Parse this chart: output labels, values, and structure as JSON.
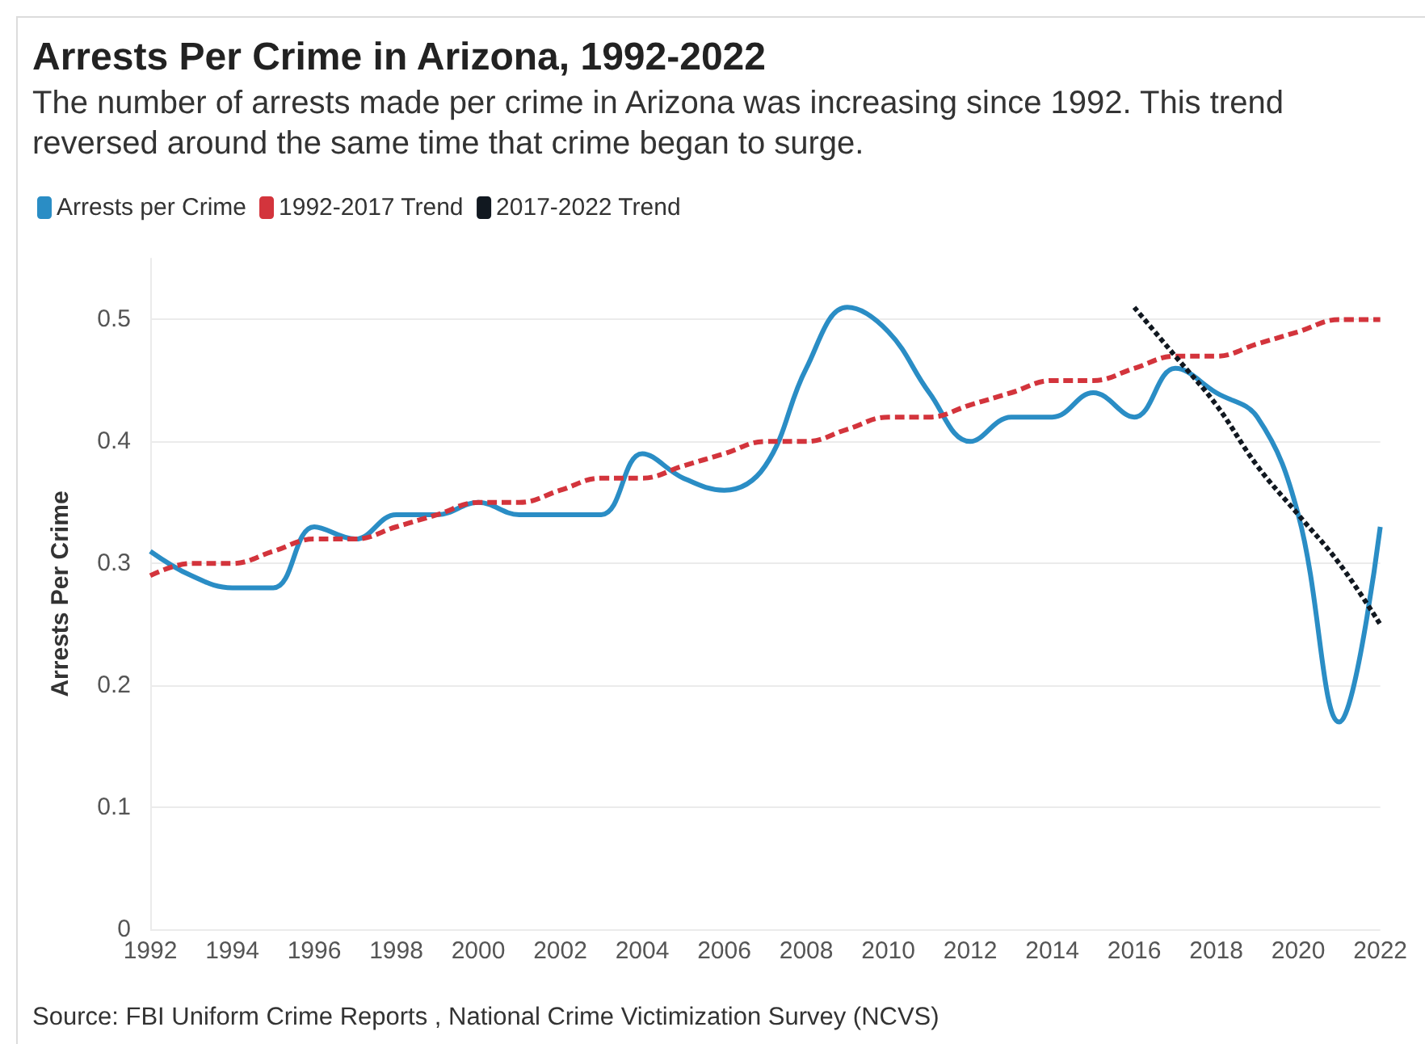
{
  "chart_data": {
    "type": "line",
    "title": "Arrests Per Crime in Arizona, 1992-2022",
    "subtitle": "The number of arrests made per crime in Arizona was increasing since 1992. This trend reversed around the same time that crime began to surge.",
    "ylabel": "Arrests Per Crime",
    "annotations": [
      "Source: FBI Uniform Crime Reports , National Crime Victimization Survey (NCVS)"
    ],
    "x": [
      1992,
      1993,
      1994,
      1995,
      1996,
      1997,
      1998,
      1999,
      2000,
      2001,
      2002,
      2003,
      2004,
      2005,
      2006,
      2007,
      2008,
      2009,
      2010,
      2011,
      2012,
      2013,
      2014,
      2015,
      2016,
      2017,
      2018,
      2019,
      2020,
      2021,
      2022
    ],
    "series": [
      {
        "name": "Arrests per Crime",
        "color": "#2a8dc5",
        "line_style": "solid",
        "values": [
          0.31,
          0.29,
          0.28,
          0.28,
          0.33,
          0.32,
          0.34,
          0.34,
          0.35,
          0.34,
          0.34,
          0.34,
          0.39,
          0.37,
          0.36,
          0.38,
          0.46,
          0.51,
          0.49,
          0.44,
          0.4,
          0.42,
          0.42,
          0.44,
          0.42,
          0.46,
          0.44,
          0.42,
          0.34,
          0.17,
          0.33
        ]
      },
      {
        "name": "1992-2017 Trend",
        "color": "#d3343c",
        "line_style": "dashed",
        "values": [
          0.29,
          0.3,
          0.3,
          0.31,
          0.32,
          0.32,
          0.33,
          0.34,
          0.35,
          0.35,
          0.36,
          0.37,
          0.37,
          0.38,
          0.39,
          0.4,
          0.4,
          0.41,
          0.42,
          0.42,
          0.43,
          0.44,
          0.45,
          0.45,
          0.46,
          0.47,
          0.47,
          0.48,
          0.49,
          0.5,
          0.5
        ]
      },
      {
        "name": "2017-2022 Trend",
        "color": "#111820",
        "line_style": "dotted",
        "x": [
          2016,
          2017,
          2018,
          2019,
          2020,
          2021,
          2022
        ],
        "values": [
          0.51,
          0.47,
          0.43,
          0.38,
          0.34,
          0.3,
          0.25
        ]
      }
    ],
    "xlim": [
      1992,
      2022
    ],
    "xticks": [
      1992,
      1994,
      1996,
      1998,
      2000,
      2002,
      2004,
      2006,
      2008,
      2010,
      2012,
      2014,
      2016,
      2018,
      2020,
      2022
    ],
    "ylim": [
      0,
      0.55
    ],
    "yticks": [
      0,
      0.1,
      0.2,
      0.3,
      0.4,
      0.5
    ],
    "grid": "y",
    "legend": "top left",
    "marker": "none"
  }
}
